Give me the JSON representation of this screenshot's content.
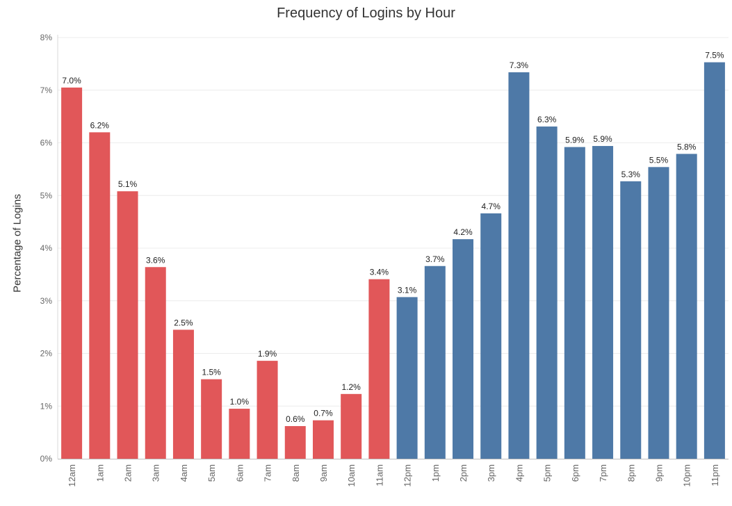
{
  "chart_data": {
    "type": "bar",
    "title": "Frequency of Logins by Hour",
    "xlabel": "",
    "ylabel": "Percentage of Logins",
    "ylim": [
      0,
      8
    ],
    "y_ticks": [
      "0%",
      "1%",
      "2%",
      "3%",
      "4%",
      "5%",
      "6%",
      "7%",
      "8%"
    ],
    "y_tick_values": [
      0,
      1,
      2,
      3,
      4,
      5,
      6,
      7,
      8
    ],
    "grid": true,
    "categories": [
      "12am",
      "1am",
      "2am",
      "3am",
      "4am",
      "5am",
      "6am",
      "7am",
      "8am",
      "9am",
      "10am",
      "11am",
      "12pm",
      "1pm",
      "2pm",
      "3pm",
      "4pm",
      "5pm",
      "6pm",
      "7pm",
      "8pm",
      "9pm",
      "10pm",
      "11pm"
    ],
    "values": [
      7.05,
      6.2,
      5.08,
      3.64,
      2.45,
      1.51,
      0.95,
      1.86,
      0.62,
      0.73,
      1.23,
      3.41,
      3.07,
      3.66,
      4.17,
      4.66,
      7.34,
      6.31,
      5.92,
      5.94,
      5.27,
      5.54,
      5.79,
      7.53
    ],
    "data_labels": [
      "7.0%",
      "6.2%",
      "5.1%",
      "3.6%",
      "2.5%",
      "1.5%",
      "1.0%",
      "1.9%",
      "0.6%",
      "0.7%",
      "1.2%",
      "3.4%",
      "3.1%",
      "3.7%",
      "4.2%",
      "4.7%",
      "7.3%",
      "6.3%",
      "5.9%",
      "5.9%",
      "5.3%",
      "5.5%",
      "5.8%",
      "7.5%"
    ],
    "groups": [
      "am",
      "am",
      "am",
      "am",
      "am",
      "am",
      "am",
      "am",
      "am",
      "am",
      "am",
      "am",
      "pm",
      "pm",
      "pm",
      "pm",
      "pm",
      "pm",
      "pm",
      "pm",
      "pm",
      "pm",
      "pm",
      "pm"
    ],
    "colors": {
      "am": "#E15759",
      "pm": "#4E79A7"
    }
  }
}
